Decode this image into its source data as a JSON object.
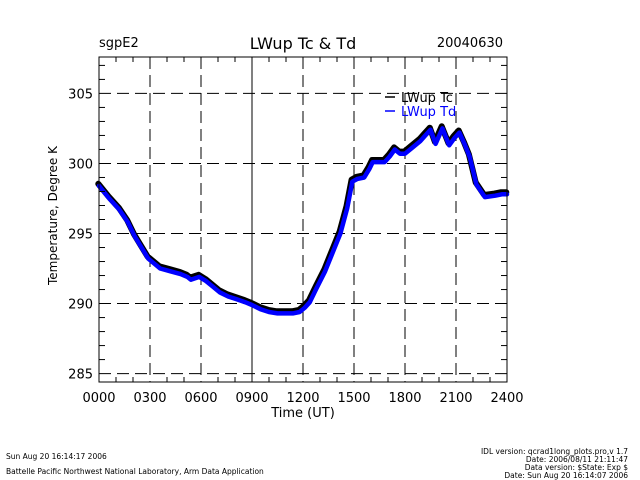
{
  "header": {
    "site": "sgpE2",
    "title": "LWup Tc & Td",
    "date": "20040630"
  },
  "footer": {
    "left_line1": "Sun Aug 20 16:14:17 2006",
    "left_line2": "Battelle Pacific Northwest National Laboratory, Arm Data Application",
    "right_lines": [
      "IDL version: qcrad1long_plots.pro,v 1.7",
      "Date: 2006/08/11 21:11:47",
      "Data version: $State: Exp $",
      "Date: Sun Aug 20 16:14:07 2006"
    ]
  },
  "chart_data": {
    "type": "line",
    "title": "LWup Tc & Td",
    "xlabel": "Time (UT)",
    "ylabel": "Temperature, Degree K",
    "xlim": [
      0,
      24
    ],
    "ylim": [
      284.4,
      307.6
    ],
    "x_ticks": [
      0,
      3,
      6,
      9,
      12,
      15,
      18,
      21,
      24
    ],
    "x_tick_labels": [
      "0000",
      "0300",
      "0600",
      "0900",
      "1200",
      "1500",
      "1800",
      "2100",
      "2400"
    ],
    "y_ticks": [
      285,
      290,
      295,
      300,
      305
    ],
    "y_tick_labels": [
      "285",
      "290",
      "295",
      "300",
      "305"
    ],
    "grid": true,
    "legend_position": "top-right",
    "series": [
      {
        "name": "LWup Tc",
        "color": "#000000",
        "x": [
          0.0,
          0.6,
          1.2,
          1.7,
          2.1,
          2.5,
          2.9,
          3.3,
          3.6,
          4.2,
          4.8,
          5.2,
          5.4,
          5.9,
          6.3,
          6.7,
          7.1,
          7.6,
          8.1,
          8.6,
          9.0,
          9.5,
          10.0,
          10.5,
          10.9,
          11.4,
          11.8,
          12.1,
          12.4,
          12.8,
          13.3,
          13.8,
          14.2,
          14.6,
          14.9,
          15.2,
          15.6,
          15.9,
          16.1,
          16.5,
          16.8,
          17.1,
          17.4,
          17.7,
          18.0,
          18.4,
          18.9,
          19.2,
          19.5,
          19.8,
          20.2,
          20.6,
          20.9,
          21.2,
          21.5,
          21.8,
          22.2,
          22.7,
          23.3,
          23.7,
          24.0
        ],
        "values": [
          298.5,
          297.6,
          296.8,
          295.9,
          294.9,
          294.1,
          293.3,
          292.9,
          292.6,
          292.4,
          292.2,
          292.0,
          291.8,
          292.0,
          291.7,
          291.3,
          290.9,
          290.6,
          290.4,
          290.2,
          290.0,
          289.7,
          289.5,
          289.4,
          289.4,
          289.4,
          289.5,
          289.8,
          290.2,
          291.2,
          292.4,
          293.9,
          295.1,
          296.9,
          298.8,
          299.0,
          299.1,
          299.7,
          300.2,
          300.2,
          300.2,
          300.6,
          301.1,
          300.8,
          300.8,
          301.2,
          301.7,
          302.1,
          302.5,
          301.5,
          302.6,
          301.4,
          301.9,
          302.3,
          301.5,
          300.6,
          298.6,
          297.7,
          297.8,
          297.9,
          297.9
        ]
      },
      {
        "name": "LWup Td",
        "color": "#0000ff",
        "x": [
          0.0,
          0.6,
          1.2,
          1.7,
          2.1,
          2.5,
          2.9,
          3.3,
          3.6,
          4.2,
          4.8,
          5.2,
          5.4,
          5.9,
          6.3,
          6.7,
          7.1,
          7.6,
          8.1,
          8.6,
          9.0,
          9.5,
          10.0,
          10.5,
          10.9,
          11.4,
          11.8,
          12.1,
          12.4,
          12.8,
          13.3,
          13.8,
          14.2,
          14.6,
          14.9,
          15.2,
          15.6,
          15.9,
          16.1,
          16.5,
          16.8,
          17.1,
          17.4,
          17.7,
          18.0,
          18.4,
          18.9,
          19.2,
          19.5,
          19.8,
          20.2,
          20.6,
          20.9,
          21.2,
          21.5,
          21.8,
          22.2,
          22.7,
          23.3,
          23.7,
          24.0
        ],
        "values": [
          298.4,
          297.5,
          296.7,
          295.8,
          294.8,
          294.0,
          293.2,
          292.8,
          292.5,
          292.3,
          292.1,
          291.9,
          291.7,
          291.9,
          291.6,
          291.2,
          290.8,
          290.5,
          290.3,
          290.1,
          289.9,
          289.6,
          289.4,
          289.3,
          289.3,
          289.3,
          289.4,
          289.7,
          290.1,
          291.1,
          292.3,
          293.8,
          295.0,
          296.8,
          298.7,
          298.9,
          299.0,
          299.6,
          300.1,
          300.1,
          300.1,
          300.5,
          301.0,
          300.7,
          300.7,
          301.1,
          301.6,
          302.0,
          302.4,
          301.4,
          302.5,
          301.3,
          301.8,
          302.2,
          301.4,
          300.5,
          298.5,
          297.6,
          297.7,
          297.8,
          297.8
        ]
      }
    ]
  }
}
